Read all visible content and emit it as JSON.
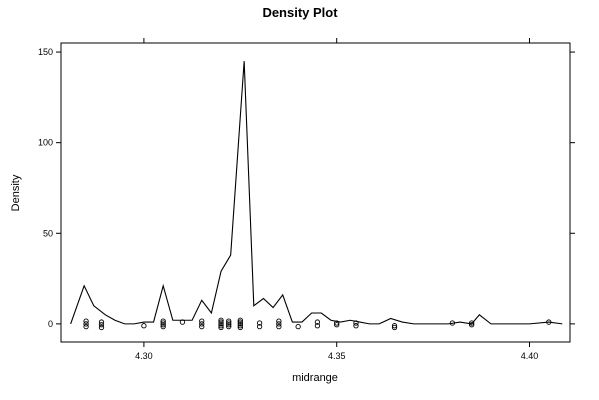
{
  "chart_data": {
    "type": "line",
    "title": "Density Plot",
    "xlabel": "midrange",
    "ylabel": "Density",
    "xlim": [
      4.2785,
      4.4105
    ],
    "ylim": [
      -10,
      155
    ],
    "xticks": [
      4.3,
      4.35,
      4.4
    ],
    "xtick_labels": [
      "4.30",
      "4.35",
      "4.40"
    ],
    "yticks": [
      0,
      50,
      100,
      150
    ],
    "ytick_labels": [
      "0",
      "50",
      "100",
      "150"
    ],
    "grid": false,
    "legend": "none",
    "line_color": "#000000",
    "series": [
      {
        "x": [
          4.281,
          4.2845,
          4.287,
          4.29,
          4.2925,
          4.295,
          4.2975,
          4.3,
          4.3025,
          4.305,
          4.3075,
          4.31,
          4.3125,
          4.315,
          4.3175,
          4.32,
          4.3225,
          4.326,
          4.3285,
          4.331,
          4.3335,
          4.336,
          4.3385,
          4.341,
          4.3435,
          4.346,
          4.3485,
          4.351,
          4.3535,
          4.356,
          4.3585,
          4.361,
          4.364,
          4.367,
          4.37,
          4.373,
          4.376,
          4.379,
          4.382,
          4.385,
          4.387,
          4.39,
          4.395,
          4.4,
          4.405,
          4.4085
        ],
        "y": [
          0,
          21,
          10,
          5,
          2,
          0,
          0,
          1,
          1,
          21,
          2,
          2,
          2,
          13,
          6,
          29,
          38,
          145,
          10,
          14,
          9,
          16,
          1,
          1,
          6,
          6,
          2,
          1,
          2,
          1,
          0,
          0,
          3,
          1,
          0,
          0,
          0,
          0,
          1,
          0,
          5,
          0,
          0,
          0,
          1,
          0
        ]
      }
    ],
    "rug_points": {
      "x": [
        4.285,
        4.285,
        4.285,
        4.289,
        4.289,
        4.289,
        4.3,
        4.305,
        4.305,
        4.305,
        4.305,
        4.31,
        4.315,
        4.315,
        4.315,
        4.32,
        4.32,
        4.32,
        4.32,
        4.32,
        4.322,
        4.322,
        4.322,
        4.322,
        4.325,
        4.325,
        4.325,
        4.325,
        4.325,
        4.33,
        4.33,
        4.335,
        4.335,
        4.335,
        4.34,
        4.345,
        4.345,
        4.35,
        4.35,
        4.355,
        4.355,
        4.365,
        4.365,
        4.38,
        4.385,
        4.385,
        4.405
      ],
      "y": [
        1.5,
        0,
        -1.5,
        1.0,
        -0.5,
        -2.0,
        -1.0,
        1.5,
        0.5,
        -0.5,
        -1.5,
        1.0,
        1.5,
        0,
        -1.5,
        2.0,
        1.0,
        0,
        -1.0,
        -2.0,
        1.5,
        0.5,
        -0.5,
        -1.5,
        2.0,
        1.0,
        0,
        -1.0,
        -2.0,
        0.5,
        -1.5,
        1.5,
        0,
        -1.5,
        -1.5,
        1.0,
        -1.0,
        0.5,
        -0.5,
        0.5,
        -1.0,
        -1.0,
        -2.0,
        0.5,
        0.5,
        -0.5,
        1.0
      ]
    }
  }
}
